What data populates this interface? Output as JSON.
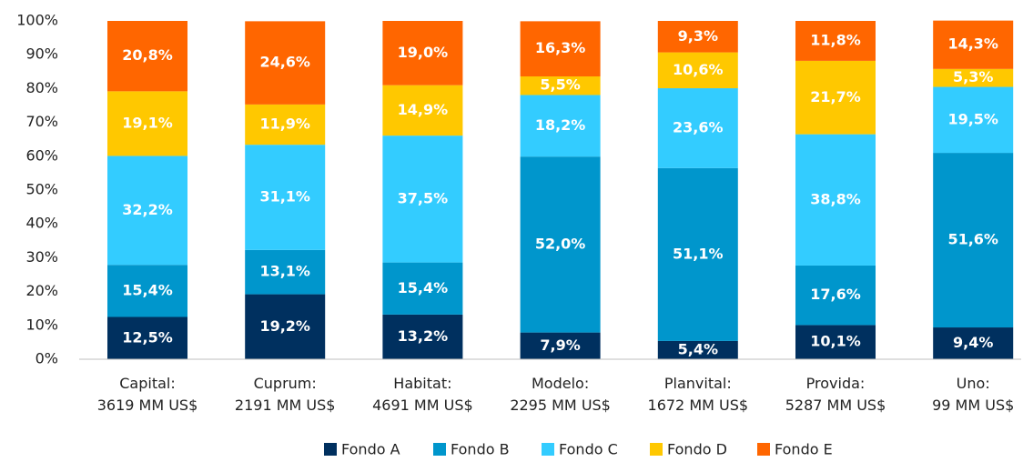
{
  "chart_data": {
    "type": "stacked_bar",
    "categories": [
      [
        "Capital:",
        "3619 MM US$"
      ],
      [
        "Cuprum:",
        "2191 MM US$"
      ],
      [
        "Habitat:",
        "4691 MM US$"
      ],
      [
        "Modelo:",
        "2295 MM US$"
      ],
      [
        "Planvital:",
        "1672 MM US$"
      ],
      [
        "Provida:",
        "5287 MM US$"
      ],
      [
        "Uno:",
        "99 MM US$"
      ]
    ],
    "series": [
      {
        "name": "Fondo A",
        "color": "#00305f",
        "values": [
          12.5,
          19.2,
          13.2,
          7.9,
          5.4,
          10.1,
          9.4
        ],
        "value_labels": [
          "12,5%",
          "19,2%",
          "13,2%",
          "7,9%",
          "5,4%",
          "10,1%",
          "9,4%"
        ]
      },
      {
        "name": "Fondo B",
        "color": "#0096cc",
        "values": [
          15.4,
          13.1,
          15.4,
          52.0,
          51.1,
          17.6,
          51.6
        ],
        "value_labels": [
          "15,4%",
          "13,1%",
          "15,4%",
          "52,0%",
          "51,1%",
          "17,6%",
          "51,6%"
        ]
      },
      {
        "name": "Fondo C",
        "color": "#33ccff",
        "values": [
          32.2,
          31.1,
          37.5,
          18.2,
          23.6,
          38.8,
          19.5
        ],
        "value_labels": [
          "32,2%",
          "31,1%",
          "37,5%",
          "18,2%",
          "23,6%",
          "38,8%",
          "19,5%"
        ]
      },
      {
        "name": "Fondo D",
        "color": "#ffc800",
        "values": [
          19.1,
          11.9,
          14.9,
          5.5,
          10.6,
          21.7,
          5.3
        ],
        "value_labels": [
          "19,1%",
          "11,9%",
          "14,9%",
          "5,5%",
          "10,6%",
          "21,7%",
          "5,3%"
        ]
      },
      {
        "name": "Fondo E",
        "color": "#ff6600",
        "values": [
          20.8,
          24.6,
          19.0,
          16.3,
          9.3,
          11.8,
          14.3
        ],
        "value_labels": [
          "20,8%",
          "24,6%",
          "19,0%",
          "16,3%",
          "9,3%",
          "11,8%",
          "14,3%"
        ]
      }
    ],
    "ylim": [
      0,
      100
    ],
    "yticks": [
      {
        "value": 0,
        "label": "0%"
      },
      {
        "value": 10,
        "label": "10%"
      },
      {
        "value": 20,
        "label": "20%"
      },
      {
        "value": 30,
        "label": "30%"
      },
      {
        "value": 40,
        "label": "40%"
      },
      {
        "value": 50,
        "label": "50%"
      },
      {
        "value": 60,
        "label": "60%"
      },
      {
        "value": 70,
        "label": "70%"
      },
      {
        "value": 80,
        "label": "80%"
      },
      {
        "value": 90,
        "label": "90%"
      },
      {
        "value": 100,
        "label": "100%"
      }
    ],
    "grid": false,
    "legend": "bottom"
  }
}
